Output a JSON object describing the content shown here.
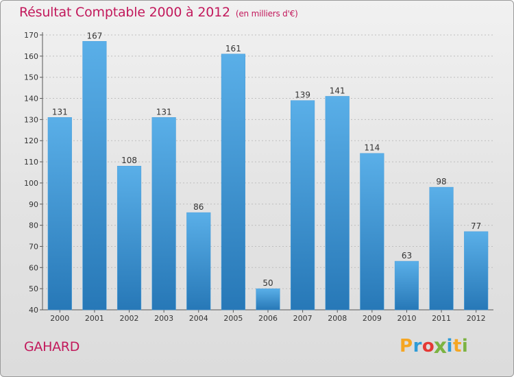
{
  "header": {
    "title": "Résultat Comptable 2000 à 2012",
    "subtitle": "(en milliers d'€)"
  },
  "footer": {
    "city": "GAHARD",
    "brand": {
      "letters": [
        "P",
        "r",
        "o",
        "x",
        "i",
        "t",
        "i"
      ],
      "colors": [
        "#f5a623",
        "#2e9bd6",
        "#e53935",
        "#7cb342",
        "#2e9bd6",
        "#f5a623",
        "#7cb342"
      ]
    }
  },
  "colors": {
    "accent": "#c2185b",
    "bar_top": "#5aafe8",
    "bar_bottom": "#2778b7"
  },
  "chart_data": {
    "type": "bar",
    "title": "Résultat Comptable 2000 à 2012",
    "subtitle": "(en milliers d'€)",
    "categories": [
      "2000",
      "2001",
      "2002",
      "2003",
      "2004",
      "2005",
      "2006",
      "2007",
      "2008",
      "2009",
      "2010",
      "2011",
      "2012"
    ],
    "values": [
      131,
      167,
      108,
      131,
      86,
      161,
      50,
      139,
      141,
      114,
      63,
      98,
      77
    ],
    "ylim": [
      40,
      170
    ],
    "yticks": [
      40,
      50,
      60,
      70,
      80,
      90,
      100,
      110,
      120,
      130,
      140,
      150,
      160,
      170
    ],
    "grid": true,
    "xlabel": "",
    "ylabel": ""
  }
}
